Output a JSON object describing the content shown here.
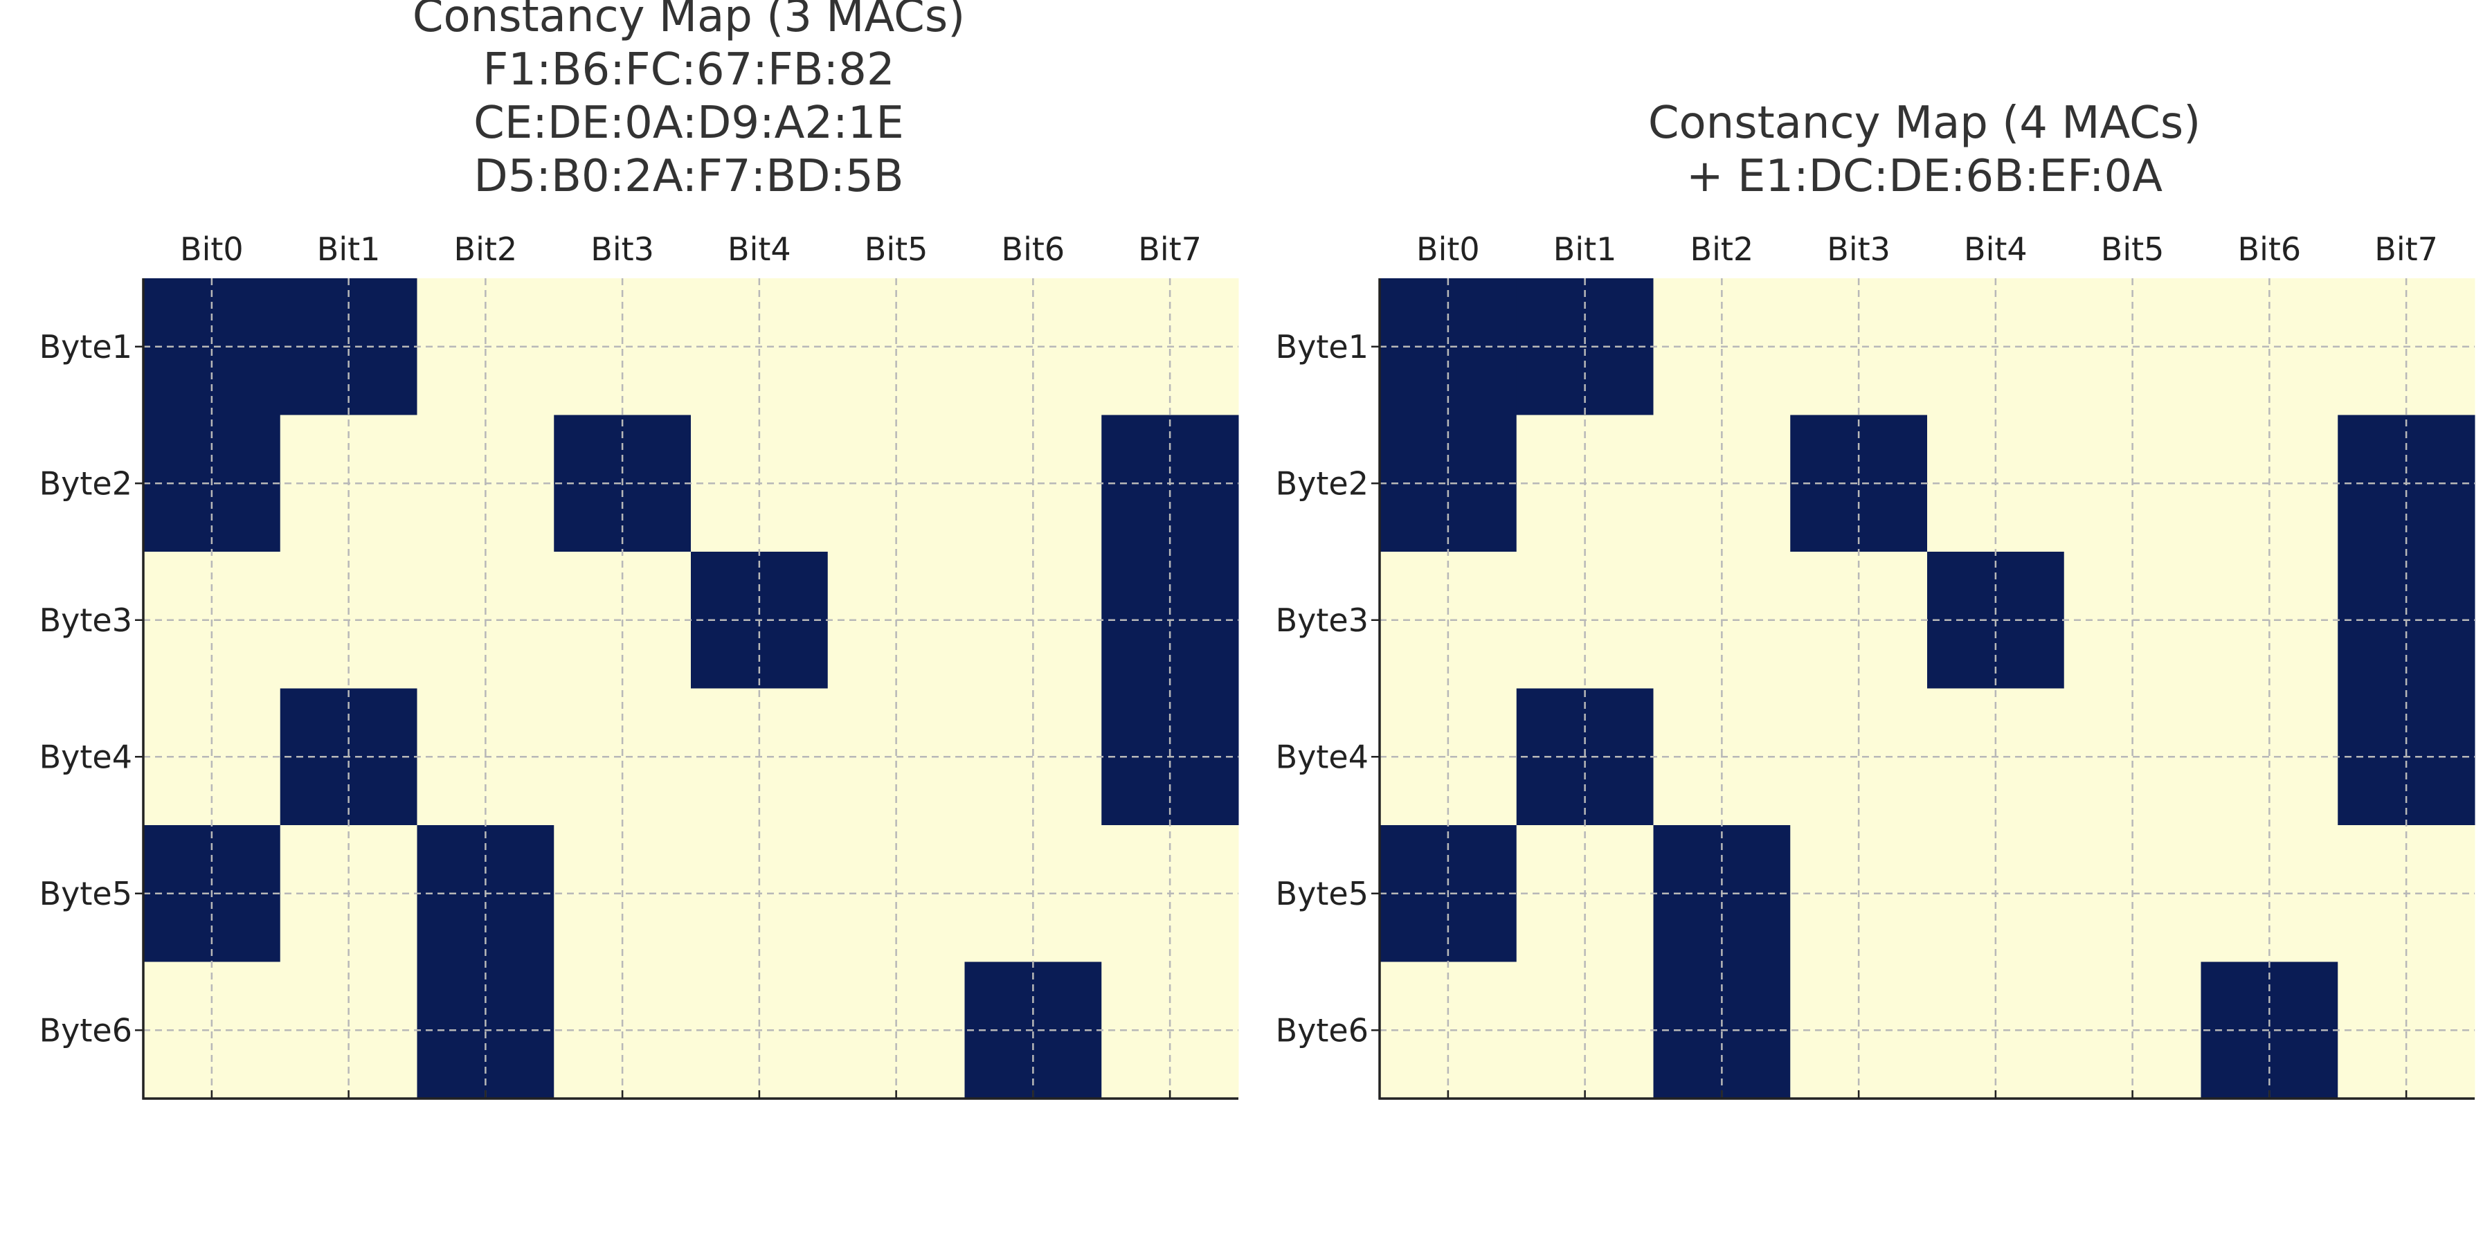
{
  "chart_data": [
    {
      "type": "heatmap",
      "title_lines": [
        "Constancy Map (3 MACs)",
        "F1:B6:FC:67:FB:82",
        "CE:DE:0A:D9:A2:1E",
        "D5:B0:2A:F7:BD:5B"
      ],
      "x_categories": [
        "Bit0",
        "Bit1",
        "Bit2",
        "Bit3",
        "Bit4",
        "Bit5",
        "Bit6",
        "Bit7"
      ],
      "y_categories": [
        "Byte1",
        "Byte2",
        "Byte3",
        "Byte4",
        "Byte5",
        "Byte6"
      ],
      "values": [
        [
          1,
          1,
          0,
          0,
          0,
          0,
          0,
          0
        ],
        [
          1,
          0,
          0,
          1,
          0,
          0,
          0,
          1
        ],
        [
          0,
          0,
          0,
          0,
          1,
          0,
          0,
          1
        ],
        [
          0,
          1,
          0,
          0,
          0,
          0,
          0,
          1
        ],
        [
          1,
          0,
          1,
          0,
          0,
          0,
          0,
          0
        ],
        [
          0,
          0,
          1,
          0,
          0,
          0,
          1,
          0
        ]
      ],
      "x_axis_position": "top",
      "grid": true
    },
    {
      "type": "heatmap",
      "title_lines": [
        "Constancy Map (4 MACs)",
        "+ E1:DC:DE:6B:EF:0A"
      ],
      "x_categories": [
        "Bit0",
        "Bit1",
        "Bit2",
        "Bit3",
        "Bit4",
        "Bit5",
        "Bit6",
        "Bit7"
      ],
      "y_categories": [
        "Byte1",
        "Byte2",
        "Byte3",
        "Byte4",
        "Byte5",
        "Byte6"
      ],
      "values": [
        [
          1,
          1,
          0,
          0,
          0,
          0,
          0,
          0
        ],
        [
          1,
          0,
          0,
          1,
          0,
          0,
          0,
          1
        ],
        [
          0,
          0,
          0,
          0,
          1,
          0,
          0,
          1
        ],
        [
          0,
          1,
          0,
          0,
          0,
          0,
          0,
          1
        ],
        [
          1,
          0,
          1,
          0,
          0,
          0,
          0,
          0
        ],
        [
          0,
          0,
          1,
          0,
          0,
          0,
          1,
          0
        ]
      ],
      "x_axis_position": "top",
      "grid": true
    }
  ],
  "colors": {
    "high": "#0a1c55",
    "low": "#fdfcd8",
    "grid": "#b8b8b8",
    "axis": "#222222",
    "text": "#333333"
  }
}
